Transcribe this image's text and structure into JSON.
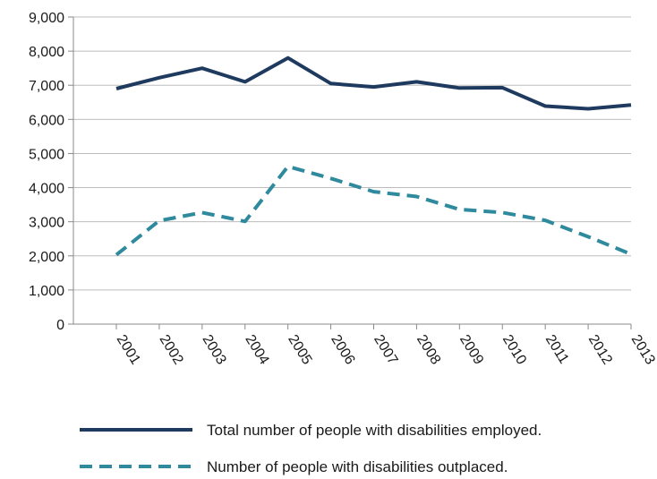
{
  "chart_data": {
    "type": "line",
    "title": "",
    "xlabel": "",
    "ylabel": "",
    "x": [
      "2001",
      "2002",
      "2003",
      "2004",
      "2005",
      "2006",
      "2007",
      "2008",
      "2009",
      "2010",
      "2011",
      "2012",
      "2013"
    ],
    "ylim": [
      0,
      9000
    ],
    "yticks": [
      "0",
      "1,000",
      "2,000",
      "3,000",
      "4,000",
      "5,000",
      "6,000",
      "7,000",
      "8,000",
      "9,000"
    ],
    "grid": true,
    "legend_position": "bottom",
    "series": [
      {
        "name": "Total number of people with disabilities employed.",
        "values": [
          6900,
          7220,
          7500,
          7100,
          7800,
          7050,
          6950,
          7100,
          6920,
          6930,
          6390,
          6310,
          6420
        ],
        "color": "#1f3a5f",
        "style": "solid"
      },
      {
        "name": "Number of people with disabilities outplaced.",
        "values": [
          2030,
          3030,
          3270,
          3010,
          4620,
          4270,
          3880,
          3740,
          3360,
          3270,
          3040,
          2560,
          2050
        ],
        "color": "#2e8a9c",
        "style": "dashed"
      }
    ]
  }
}
